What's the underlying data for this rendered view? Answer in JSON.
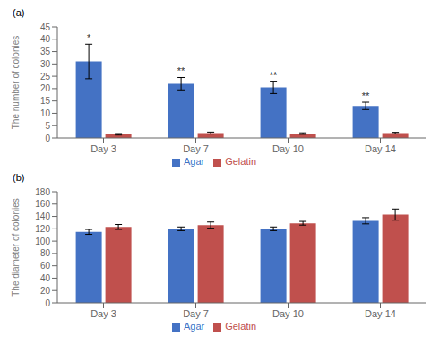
{
  "chart_data": [
    {
      "type": "bar",
      "title": "(a)",
      "categories": [
        "Day 3",
        "Day 7",
        "Day 10",
        "Day 14"
      ],
      "ylabel": "The number of colonies",
      "ylim": [
        0,
        45
      ],
      "yticks": [
        0,
        5,
        10,
        15,
        20,
        25,
        30,
        35,
        40,
        45
      ],
      "grid": false,
      "legend": "bottom",
      "annotations": [
        "*",
        "**",
        "**",
        "**"
      ],
      "series": [
        {
          "name": "Agar",
          "color": "#4472C4",
          "values": [
            31,
            22,
            20.5,
            13
          ],
          "errors": [
            7,
            2.5,
            2.5,
            1.5
          ]
        },
        {
          "name": "Gelatin",
          "color": "#C0504D",
          "values": [
            1.5,
            2,
            1.8,
            2
          ],
          "errors": [
            0.3,
            0.4,
            0.3,
            0.3
          ]
        }
      ]
    },
    {
      "type": "bar",
      "title": "(b)",
      "categories": [
        "Day 3",
        "Day 7",
        "Day 10",
        "Day 14"
      ],
      "ylabel": "The diameter of colonies",
      "ylim": [
        0,
        180
      ],
      "yticks": [
        0,
        20,
        40,
        60,
        80,
        100,
        120,
        140,
        160,
        180
      ],
      "grid": false,
      "legend": "bottom",
      "series": [
        {
          "name": "Agar",
          "color": "#4472C4",
          "values": [
            115,
            120,
            120,
            133
          ],
          "errors": [
            4,
            3,
            3,
            5
          ]
        },
        {
          "name": "Gelatin",
          "color": "#C0504D",
          "values": [
            123,
            126,
            129,
            143
          ],
          "errors": [
            4,
            5,
            3,
            9
          ]
        }
      ]
    }
  ]
}
